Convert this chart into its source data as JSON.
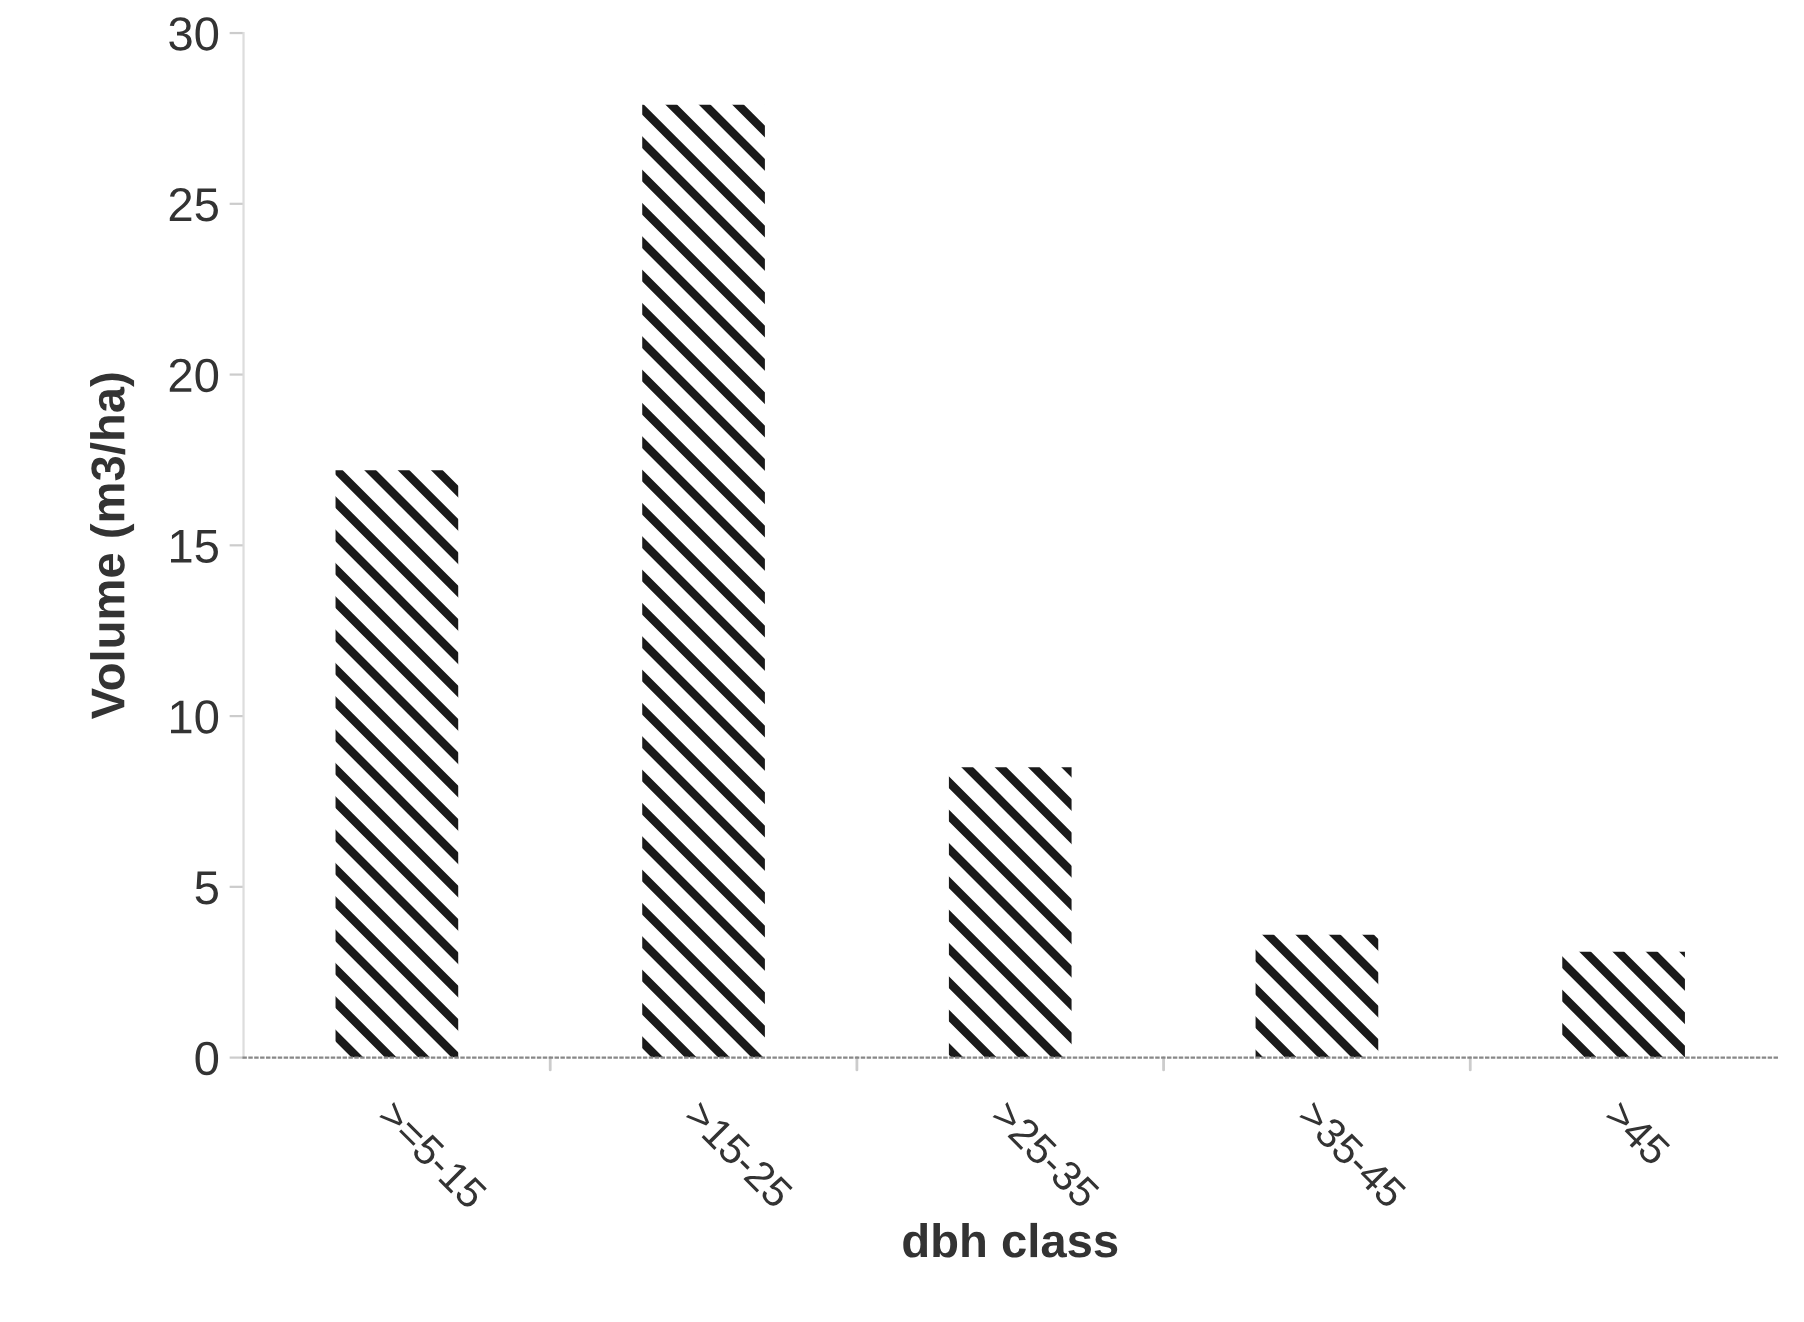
{
  "chart_data": {
    "type": "bar",
    "xlabel": "dbh class",
    "ylabel": "Volume (m3/ha)",
    "categories": [
      ">=5-15",
      ">15-25",
      ">25-35",
      ">35-45",
      ">45"
    ],
    "values": [
      17.2,
      27.9,
      8.5,
      3.6,
      3.1
    ],
    "color": "#1a1a1a",
    "ylim": [
      0,
      30
    ],
    "yticks": [
      0,
      5,
      10,
      15,
      20,
      25,
      30
    ],
    "grid": false,
    "legend": false
  }
}
